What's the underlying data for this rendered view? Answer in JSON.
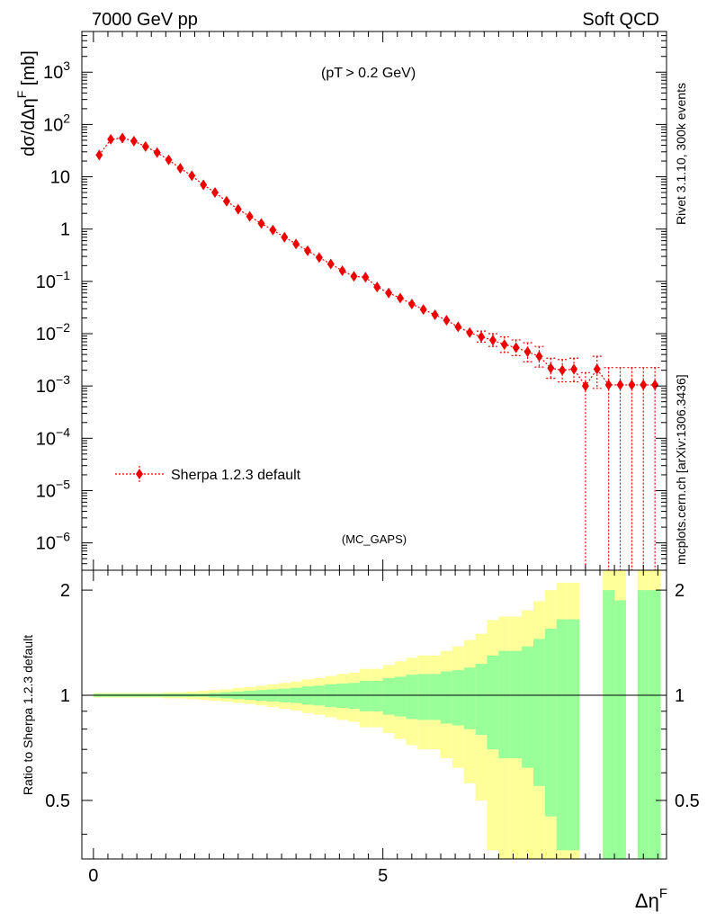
{
  "header": {
    "left": "7000 GeV pp",
    "right": "Soft QCD"
  },
  "side_labels": {
    "rivet": "Rivet 3.1.10,  300k events",
    "mcplots": "mcplots.cern.ch [arXiv:1306.3436]"
  },
  "colors": {
    "mc": "#ee0000",
    "stat_band": "#99ff99",
    "total_band": "#ffff99",
    "frame": "#000000",
    "tag": "#999999"
  },
  "chart_data": [
    {
      "type": "scatter",
      "ylabel": "dσ/dΔη^F [mb]",
      "annotation": "(p_T > 0.2 GeV)",
      "tag": "(MC_GAPS)",
      "y_scale": "log",
      "xlim": [
        -0.2,
        9.9
      ],
      "ylim": [
        3e-07,
        6000
      ],
      "y_ticks": [
        {
          "v": 1e-06,
          "base": "10",
          "exp": "−6"
        },
        {
          "v": 1e-05,
          "base": "10",
          "exp": "−5"
        },
        {
          "v": 0.0001,
          "base": "10",
          "exp": "−4"
        },
        {
          "v": 0.001,
          "base": "10",
          "exp": "−3"
        },
        {
          "v": 0.01,
          "base": "10",
          "exp": "−2"
        },
        {
          "v": 0.1,
          "base": "10",
          "exp": "−1"
        },
        {
          "v": 1,
          "base": "1",
          "exp": ""
        },
        {
          "v": 10,
          "base": "10",
          "exp": ""
        },
        {
          "v": 100,
          "base": "10",
          "exp": "2"
        },
        {
          "v": 1000,
          "base": "10",
          "exp": "3"
        }
      ],
      "legend": {
        "entry": "Sherpa 1.2.3 default",
        "placement": "lower-left"
      },
      "series": [
        {
          "name": "Sherpa 1.2.3 default",
          "style": "dotted line, diamond markers",
          "x": [
            0.1,
            0.3,
            0.5,
            0.7,
            0.9,
            1.1,
            1.3,
            1.5,
            1.7,
            1.9,
            2.1,
            2.3,
            2.5,
            2.7,
            2.9,
            3.1,
            3.3,
            3.5,
            3.7,
            3.9,
            4.1,
            4.3,
            4.5,
            4.7,
            4.9,
            5.1,
            5.3,
            5.5,
            5.7,
            5.9,
            6.1,
            6.3,
            6.5,
            6.7,
            6.9,
            7.1,
            7.3,
            7.5,
            7.7,
            7.9,
            8.1,
            8.3,
            8.5,
            8.7,
            8.9,
            9.1,
            9.3,
            9.5,
            9.7
          ],
          "y": [
            26,
            52,
            55,
            48,
            38,
            29,
            21,
            14.5,
            10.5,
            7,
            5,
            3.4,
            2.4,
            1.75,
            1.28,
            0.96,
            0.7,
            0.52,
            0.385,
            0.285,
            0.215,
            0.16,
            0.125,
            0.12,
            0.078,
            0.06,
            0.048,
            0.037,
            0.029,
            0.023,
            0.018,
            0.0135,
            0.0105,
            0.0087,
            0.0075,
            0.0062,
            0.0054,
            0.0045,
            0.0037,
            0.0022,
            0.002,
            0.0021,
            0.001,
            0.0021,
            0.00105,
            0.00105,
            0.00105,
            0.00105,
            0.00105
          ],
          "y_err_low": [
            0,
            0,
            0,
            0,
            0,
            0,
            0,
            0,
            0,
            0,
            0,
            0,
            0,
            0,
            0,
            0,
            0,
            0,
            0,
            0,
            0,
            0,
            0,
            0,
            0,
            0,
            0,
            0,
            0,
            0,
            0,
            0,
            0,
            0.0018,
            0.0018,
            0.0018,
            0.0016,
            0.0016,
            0.0014,
            0.0008,
            0.0008,
            0.0009,
            0.001,
            0.0012,
            0.00105,
            0.00105,
            0.00105,
            0.00105,
            0.00105
          ],
          "y_err_high": [
            0,
            0,
            0,
            0,
            0,
            0,
            0,
            0,
            0,
            0,
            0,
            0,
            0,
            0,
            0,
            0,
            0,
            0,
            0,
            0,
            0,
            0,
            0,
            0,
            0,
            0,
            0,
            0,
            0,
            0,
            0,
            0,
            0,
            0.0025,
            0.0025,
            0.0025,
            0.0022,
            0.0022,
            0.002,
            0.0012,
            0.0012,
            0.0013,
            0.0008,
            0.0016,
            0.0012,
            0.0012,
            0.0012,
            0.0012,
            0.0012
          ]
        }
      ]
    },
    {
      "type": "area",
      "ylabel": "Ratio to Sherpa 1.2.3 default",
      "xlabel": "Δη^F",
      "xlim": [
        -0.2,
        9.9
      ],
      "ylim": [
        0.34,
        2.28
      ],
      "x_ticks": [
        0,
        5
      ],
      "y_ticks": [
        0.5,
        1,
        2
      ],
      "reference_line": 1,
      "bin_edges": [
        0,
        0.2,
        0.4,
        0.6,
        0.8,
        1.0,
        1.2,
        1.4,
        1.6,
        1.8,
        2.0,
        2.2,
        2.4,
        2.6,
        2.8,
        3.0,
        3.2,
        3.4,
        3.6,
        3.8,
        4.0,
        4.2,
        4.4,
        4.6,
        4.8,
        5.0,
        5.2,
        5.4,
        5.6,
        5.8,
        6.0,
        6.2,
        6.4,
        6.6,
        6.8,
        7.0,
        7.2,
        7.4,
        7.6,
        7.8,
        8.0,
        8.2,
        8.4,
        8.6,
        8.8,
        9.0,
        9.2,
        9.4,
        9.6,
        9.8
      ],
      "series": [
        {
          "name": "stat",
          "color": "#99ff99",
          "high": [
            1.01,
            1.01,
            1.01,
            1.01,
            1.01,
            1.01,
            1.01,
            1.01,
            1.01,
            1.01,
            1.015,
            1.02,
            1.025,
            1.03,
            1.035,
            1.04,
            1.045,
            1.05,
            1.06,
            1.065,
            1.075,
            1.08,
            1.085,
            1.1,
            1.1,
            1.12,
            1.13,
            1.145,
            1.15,
            1.15,
            1.17,
            1.18,
            1.2,
            1.23,
            1.3,
            1.34,
            1.34,
            1.38,
            1.45,
            1.55,
            1.65,
            1.65,
            null,
            null,
            2.0,
            1.87,
            null,
            2.0,
            2.0
          ],
          "low": [
            0.99,
            0.99,
            0.99,
            0.99,
            0.99,
            0.99,
            0.99,
            0.99,
            0.99,
            0.99,
            0.985,
            0.98,
            0.975,
            0.97,
            0.965,
            0.96,
            0.955,
            0.95,
            0.94,
            0.935,
            0.925,
            0.92,
            0.915,
            0.9,
            0.9,
            0.88,
            0.87,
            0.855,
            0.85,
            0.85,
            0.83,
            0.82,
            0.8,
            0.77,
            0.7,
            0.66,
            0.66,
            0.62,
            0.55,
            0.45,
            0.36,
            0.36,
            null,
            null,
            0.34,
            0.34,
            null,
            0.34,
            0.34
          ]
        },
        {
          "name": "total",
          "color": "#ffff99",
          "high": [
            1.015,
            1.015,
            1.015,
            1.015,
            1.015,
            1.015,
            1.02,
            1.02,
            1.025,
            1.03,
            1.035,
            1.04,
            1.05,
            1.055,
            1.065,
            1.075,
            1.085,
            1.095,
            1.11,
            1.12,
            1.135,
            1.15,
            1.16,
            1.19,
            1.19,
            1.22,
            1.25,
            1.28,
            1.3,
            1.3,
            1.34,
            1.38,
            1.44,
            1.5,
            1.64,
            1.68,
            1.68,
            1.75,
            1.86,
            2.0,
            2.1,
            2.1,
            null,
            null,
            2.28,
            2.28,
            null,
            2.28,
            2.28
          ],
          "low": [
            0.985,
            0.985,
            0.985,
            0.985,
            0.985,
            0.985,
            0.98,
            0.98,
            0.975,
            0.97,
            0.965,
            0.96,
            0.95,
            0.945,
            0.935,
            0.925,
            0.915,
            0.905,
            0.89,
            0.88,
            0.865,
            0.85,
            0.84,
            0.81,
            0.81,
            0.78,
            0.75,
            0.72,
            0.7,
            0.7,
            0.66,
            0.62,
            0.56,
            0.5,
            0.36,
            0.34,
            0.34,
            0.34,
            0.34,
            0.34,
            0.34,
            0.34,
            null,
            null,
            0.34,
            0.34,
            null,
            0.34,
            0.34
          ]
        }
      ]
    }
  ]
}
